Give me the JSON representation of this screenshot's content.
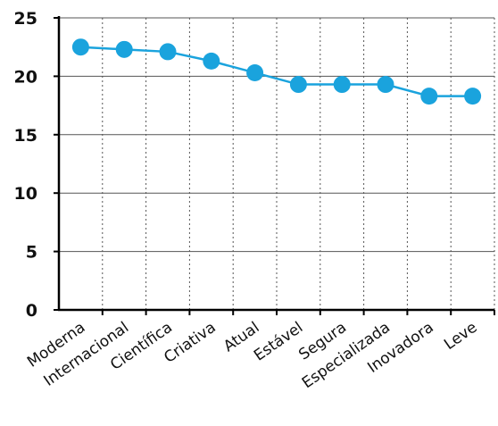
{
  "chart_data": {
    "type": "line",
    "title": "",
    "xlabel": "",
    "ylabel": "",
    "categories": [
      "Moderna",
      "Internacional",
      "Científica",
      "Criativa",
      "Atual",
      "Estável",
      "Segura",
      "Especializada",
      "Inovadora",
      "Leve"
    ],
    "series": [
      {
        "values": [
          22.5,
          22.3,
          22.1,
          21.3,
          20.3,
          19.3,
          19.3,
          19.3,
          18.3,
          18.3
        ],
        "color": "#1aa3dd"
      }
    ],
    "ylim": [
      0,
      25
    ],
    "y_ticks": [
      0,
      5,
      10,
      15,
      20,
      25
    ],
    "grid": {
      "horizontal": true,
      "vertical": true,
      "vertical_style": "dotted"
    },
    "legend": "none"
  }
}
